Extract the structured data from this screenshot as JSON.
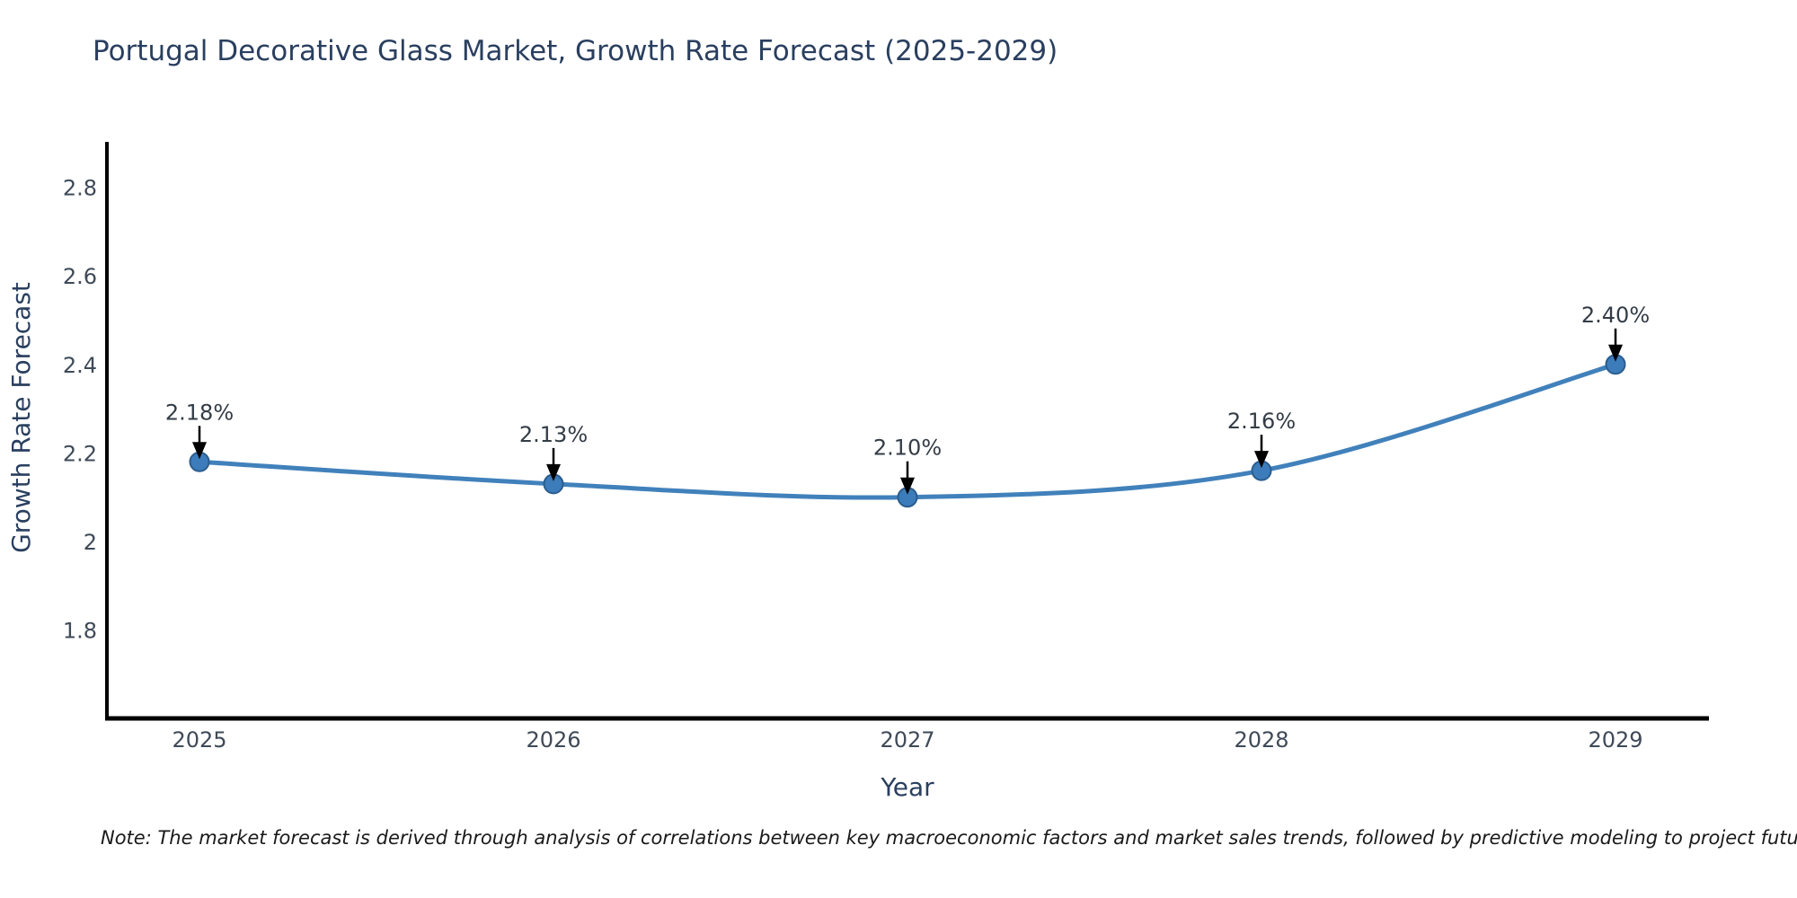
{
  "chart_data": {
    "type": "line",
    "title": "Portugal Decorative Glass Market, Growth Rate Forecast (2025-2029)",
    "xlabel": "Year",
    "ylabel": "Growth Rate Forecast",
    "categories": [
      "2025",
      "2026",
      "2027",
      "2028",
      "2029"
    ],
    "series": [
      {
        "name": "Growth Rate Forecast",
        "values": [
          2.18,
          2.13,
          2.1,
          2.16,
          2.4
        ]
      }
    ],
    "point_labels": [
      "2.18%",
      "2.13%",
      "2.10%",
      "2.16%",
      "2.40%"
    ],
    "ytick_labels": [
      "2.8",
      "2.6",
      "2.4",
      "2.2",
      "2",
      "1.8"
    ],
    "ylim": [
      1.6,
      2.9
    ],
    "grid": false,
    "legend_visible": false,
    "colors": {
      "line": "#4181bb",
      "marker_fill": "#3d7cba",
      "marker_edge": "#2b5d8e",
      "axis_line": "#000000",
      "title_text": "#2a3f5f",
      "tick_text": "#3f4a58",
      "annotation_text": "#333c46",
      "arrow": "#000000",
      "background": "#ffffff"
    }
  },
  "note": {
    "text": "Note: The market forecast is derived through analysis of correlations between key macroeconomic factors and market sales trends, followed by predictive modeling to project future sales"
  }
}
